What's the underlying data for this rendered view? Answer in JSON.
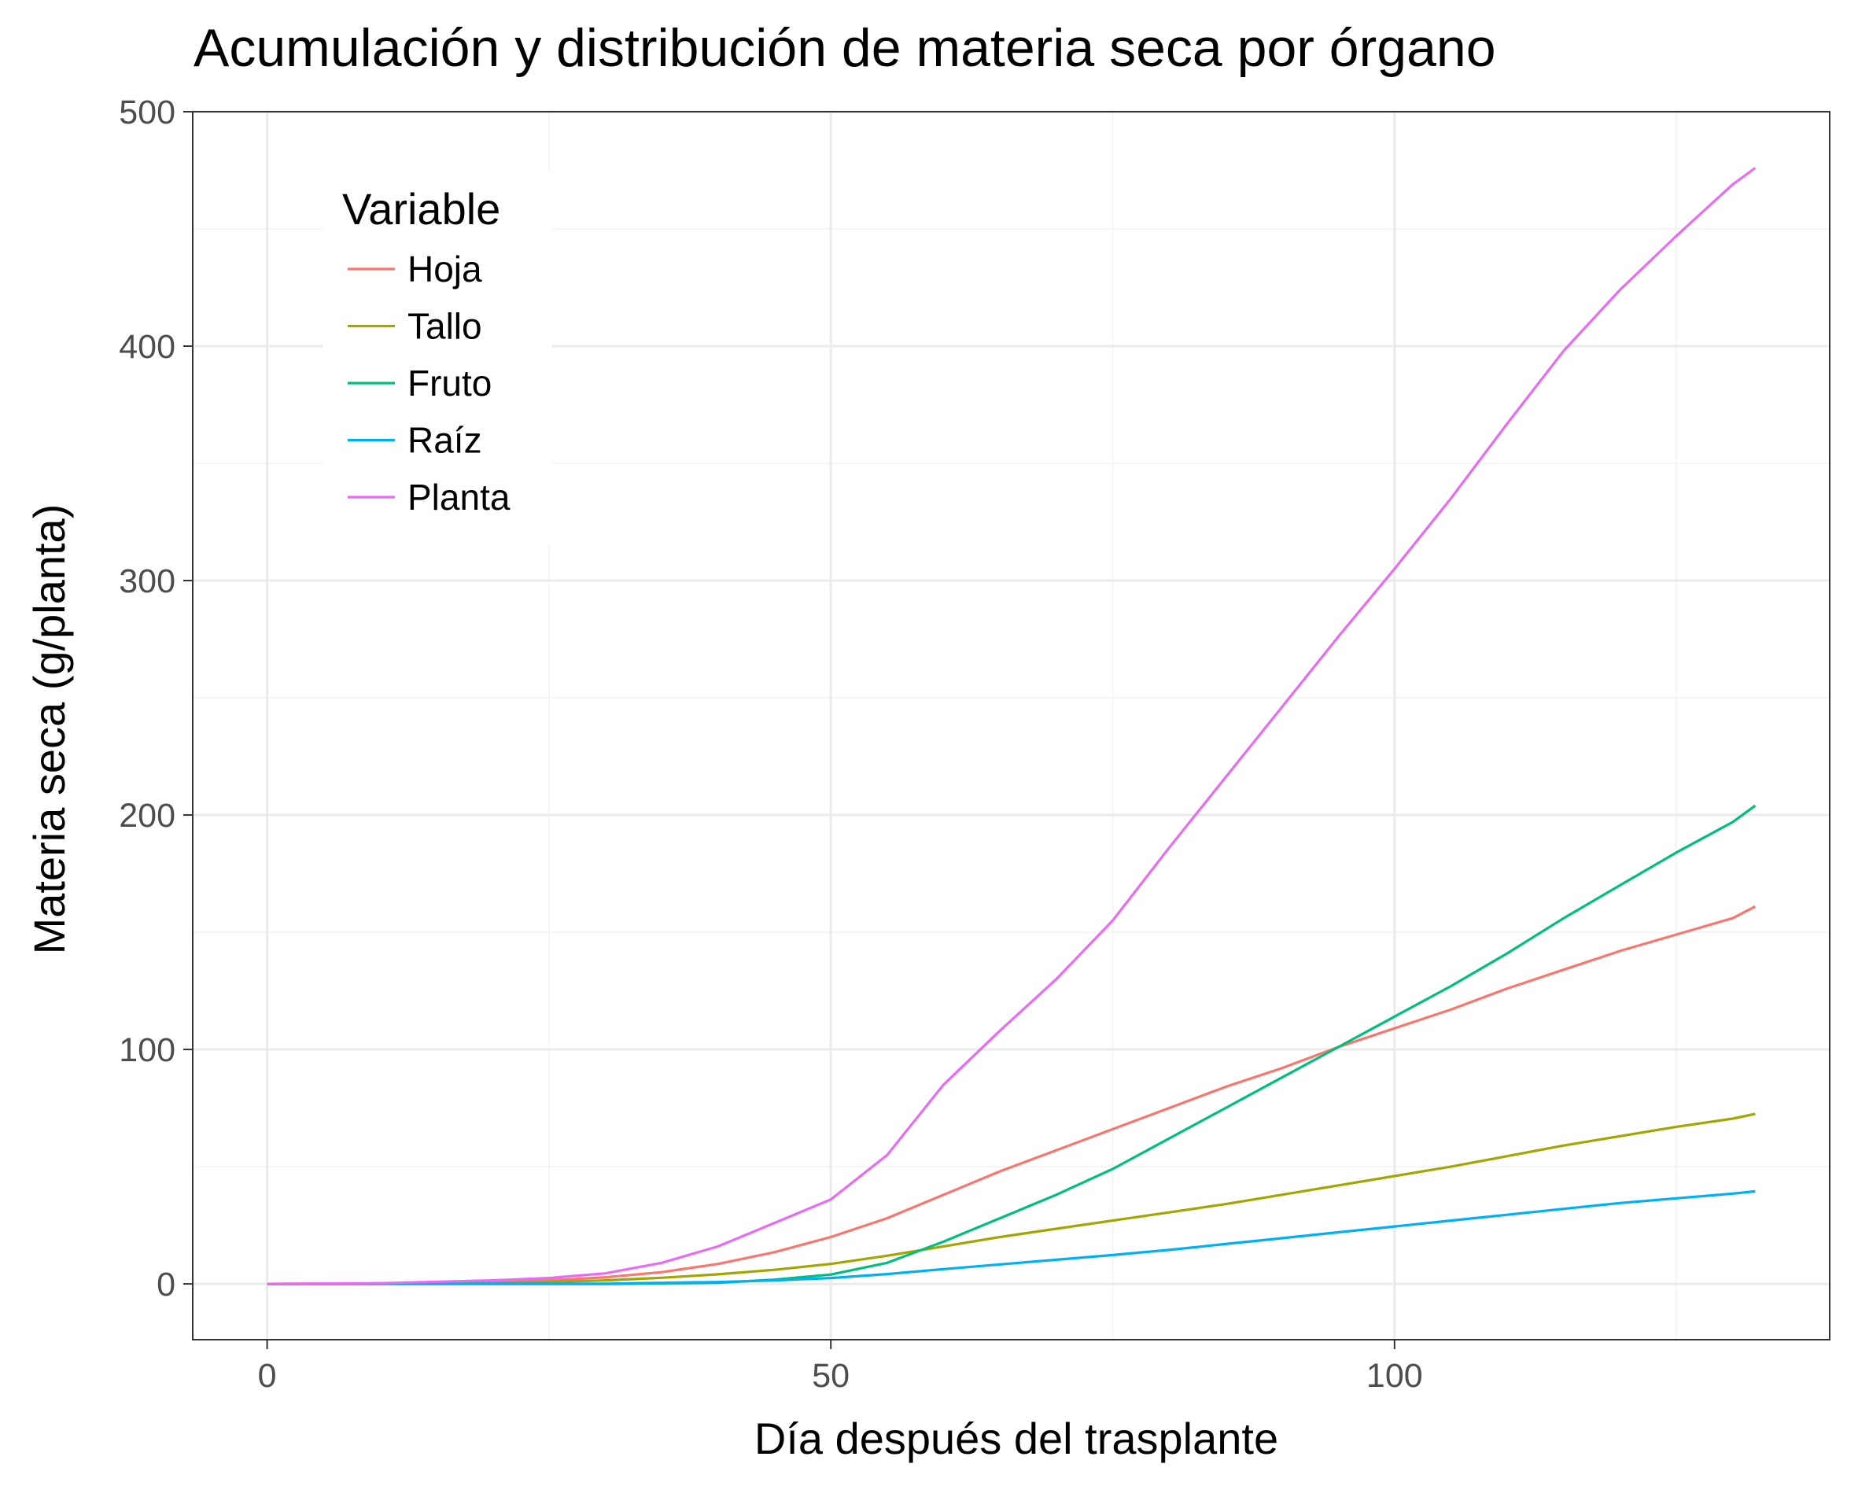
{
  "chart_data": {
    "type": "line",
    "title": "Acumulación y distribución de materia seca por órgano",
    "xlabel": "Día después del trasplante",
    "ylabel": "Materia seca (g/planta)",
    "xlim": [
      -6.6,
      138.6
    ],
    "ylim": [
      -23.8,
      500
    ],
    "x_ticks": [
      0,
      50,
      100
    ],
    "y_ticks": [
      0,
      100,
      200,
      300,
      400,
      500
    ],
    "grid": true,
    "legend": {
      "title": "Variable",
      "position": "top-left"
    },
    "series": [
      {
        "name": "Hoja",
        "color": "#F8766D",
        "points": [
          [
            0,
            0
          ],
          [
            10,
            0.2
          ],
          [
            20,
            0.8
          ],
          [
            25,
            1.5
          ],
          [
            30,
            2.8
          ],
          [
            35,
            5
          ],
          [
            40,
            8.5
          ],
          [
            45,
            13.5
          ],
          [
            50,
            20
          ],
          [
            55,
            28
          ],
          [
            60,
            38
          ],
          [
            65,
            48
          ],
          [
            70,
            57
          ],
          [
            75,
            66
          ],
          [
            80,
            75
          ],
          [
            85,
            84
          ],
          [
            90,
            92
          ],
          [
            95,
            101
          ],
          [
            100,
            109
          ],
          [
            105,
            117
          ],
          [
            110,
            126
          ],
          [
            115,
            134
          ],
          [
            120,
            142
          ],
          [
            125,
            149
          ],
          [
            130,
            156
          ],
          [
            132,
            161
          ]
        ]
      },
      {
        "name": "Tallo",
        "color": "#A3A500",
        "points": [
          [
            0,
            0
          ],
          [
            10,
            0.1
          ],
          [
            20,
            0.4
          ],
          [
            25,
            0.8
          ],
          [
            30,
            1.5
          ],
          [
            35,
            2.6
          ],
          [
            40,
            4.1
          ],
          [
            45,
            6
          ],
          [
            50,
            8.5
          ],
          [
            55,
            12
          ],
          [
            60,
            16
          ],
          [
            65,
            20
          ],
          [
            70,
            23.5
          ],
          [
            75,
            27
          ],
          [
            80,
            30.5
          ],
          [
            85,
            34
          ],
          [
            90,
            38
          ],
          [
            95,
            42
          ],
          [
            100,
            46
          ],
          [
            105,
            50
          ],
          [
            110,
            54.5
          ],
          [
            115,
            59
          ],
          [
            120,
            63
          ],
          [
            125,
            67
          ],
          [
            130,
            70.5
          ],
          [
            132,
            72.5
          ]
        ]
      },
      {
        "name": "Fruto",
        "color": "#00BF7D",
        "points": [
          [
            0,
            0
          ],
          [
            30,
            0
          ],
          [
            40,
            0.5
          ],
          [
            45,
            1.8
          ],
          [
            50,
            4
          ],
          [
            55,
            9
          ],
          [
            60,
            18
          ],
          [
            65,
            28
          ],
          [
            70,
            38
          ],
          [
            75,
            49
          ],
          [
            80,
            62
          ],
          [
            85,
            75
          ],
          [
            90,
            88
          ],
          [
            95,
            101
          ],
          [
            100,
            114
          ],
          [
            105,
            127
          ],
          [
            110,
            141
          ],
          [
            115,
            156
          ],
          [
            120,
            170
          ],
          [
            125,
            184
          ],
          [
            130,
            197
          ],
          [
            132,
            204
          ]
        ]
      },
      {
        "name": "Raíz",
        "color": "#00B0F6",
        "points": [
          [
            0,
            0
          ],
          [
            30,
            0.1
          ],
          [
            40,
            0.8
          ],
          [
            45,
            1.5
          ],
          [
            50,
            2.5
          ],
          [
            55,
            4.2
          ],
          [
            60,
            6.3
          ],
          [
            65,
            8.3
          ],
          [
            70,
            10.3
          ],
          [
            75,
            12.3
          ],
          [
            80,
            14.5
          ],
          [
            85,
            17
          ],
          [
            90,
            19.5
          ],
          [
            95,
            22
          ],
          [
            100,
            24.5
          ],
          [
            105,
            27
          ],
          [
            110,
            29.5
          ],
          [
            115,
            32
          ],
          [
            120,
            34.5
          ],
          [
            125,
            36.5
          ],
          [
            130,
            38.5
          ],
          [
            132,
            39.5
          ]
        ]
      },
      {
        "name": "Planta",
        "color": "#E76BF3",
        "points": [
          [
            0,
            0
          ],
          [
            10,
            0.3
          ],
          [
            20,
            1.5
          ],
          [
            25,
            2.5
          ],
          [
            30,
            4.5
          ],
          [
            35,
            9
          ],
          [
            40,
            16
          ],
          [
            45,
            26
          ],
          [
            50,
            36
          ],
          [
            55,
            55
          ],
          [
            60,
            85
          ],
          [
            65,
            108
          ],
          [
            70,
            130
          ],
          [
            75,
            155
          ],
          [
            80,
            186
          ],
          [
            85,
            216
          ],
          [
            90,
            246
          ],
          [
            95,
            276
          ],
          [
            100,
            305
          ],
          [
            105,
            335
          ],
          [
            110,
            367
          ],
          [
            115,
            398
          ],
          [
            120,
            424
          ],
          [
            125,
            447
          ],
          [
            130,
            469
          ],
          [
            132,
            476
          ]
        ]
      }
    ]
  }
}
